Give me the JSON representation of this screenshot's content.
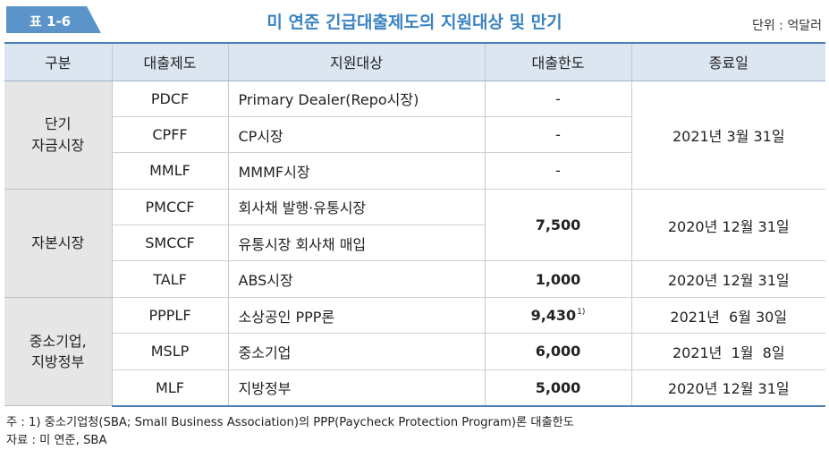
{
  "header": {
    "tag": "표 1-6",
    "title": "미 연준 긴급대출제도의 지원대상 및 만기",
    "unit": "단위 : 억달러",
    "tag_color": "#5a94c9",
    "title_color": "#3a83c2"
  },
  "table": {
    "columns": [
      "구분",
      "대출제도",
      "지원대상",
      "대출한도",
      "종료일"
    ],
    "groups": [
      {
        "label_line1": "단기",
        "label_line2": "자금시장"
      },
      {
        "label_line1": "자본시장",
        "label_line2": ""
      },
      {
        "label_line1": "중소기업,",
        "label_line2": "지방정부"
      }
    ],
    "rows": [
      {
        "program": "PDCF",
        "target": "Primary Dealer(Repo시장)",
        "limit": "-",
        "end": "2021년 3월 31일"
      },
      {
        "program": "CPFF",
        "target": "CP시장",
        "limit": "-",
        "end": ""
      },
      {
        "program": "MMLF",
        "target": "MMMF시장",
        "limit": "-",
        "end": ""
      },
      {
        "program": "PMCCF",
        "target": "회사채 발행·유통시장",
        "limit": "7,500",
        "end": "2020년 12월 31일"
      },
      {
        "program": "SMCCF",
        "target": "유통시장 회사채 매입",
        "limit": "",
        "end": ""
      },
      {
        "program": "TALF",
        "target": "ABS시장",
        "limit": "1,000",
        "end": "2020년 12월 31일"
      },
      {
        "program": "PPPLF",
        "target": "소상공인 PPP론",
        "limit": "9,430",
        "limit_note": "1)",
        "end": "2021년  6월 30일"
      },
      {
        "program": "MSLP",
        "target": "중소기업",
        "limit": "6,000",
        "end": "2021년  1월  8일"
      },
      {
        "program": "MLF",
        "target": "지방정부",
        "limit": "5,000",
        "end": "2020년 12월 31일"
      }
    ]
  },
  "notes": {
    "footnote": "주 : 1) 중소기업청(SBA; Small Business Association)의 PPP(Paycheck Protection Program)론 대출한도",
    "source": "자료 : 미 연준, SBA"
  }
}
